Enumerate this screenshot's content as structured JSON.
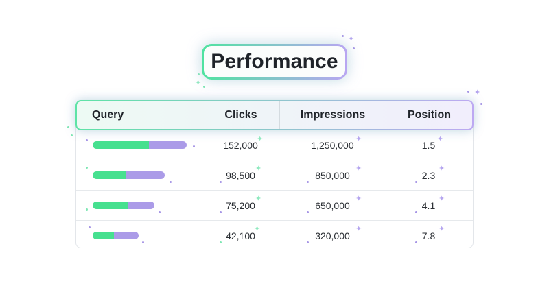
{
  "title": "Performance",
  "columns": [
    "Query",
    "Clicks",
    "Impressions",
    "Position"
  ],
  "rows": [
    {
      "bar": {
        "green": 0.6,
        "purple": 0.4,
        "total": 1.0
      },
      "clicks": "152,000",
      "impressions": "1,250,000",
      "position": "1.5"
    },
    {
      "bar": {
        "green": 0.46,
        "purple": 0.54,
        "total": 0.77
      },
      "clicks": "98,500",
      "impressions": "850,000",
      "position": "2.3"
    },
    {
      "bar": {
        "green": 0.58,
        "purple": 0.42,
        "total": 0.66
      },
      "clicks": "75,200",
      "impressions": "650,000",
      "position": "4.1"
    },
    {
      "bar": {
        "green": 0.47,
        "purple": 0.53,
        "total": 0.49
      },
      "clicks": "42,100",
      "impressions": "320,000",
      "position": "7.8"
    }
  ],
  "colors": {
    "green": "#46e08f",
    "purple": "#ab9be8",
    "text": "#20242a"
  }
}
